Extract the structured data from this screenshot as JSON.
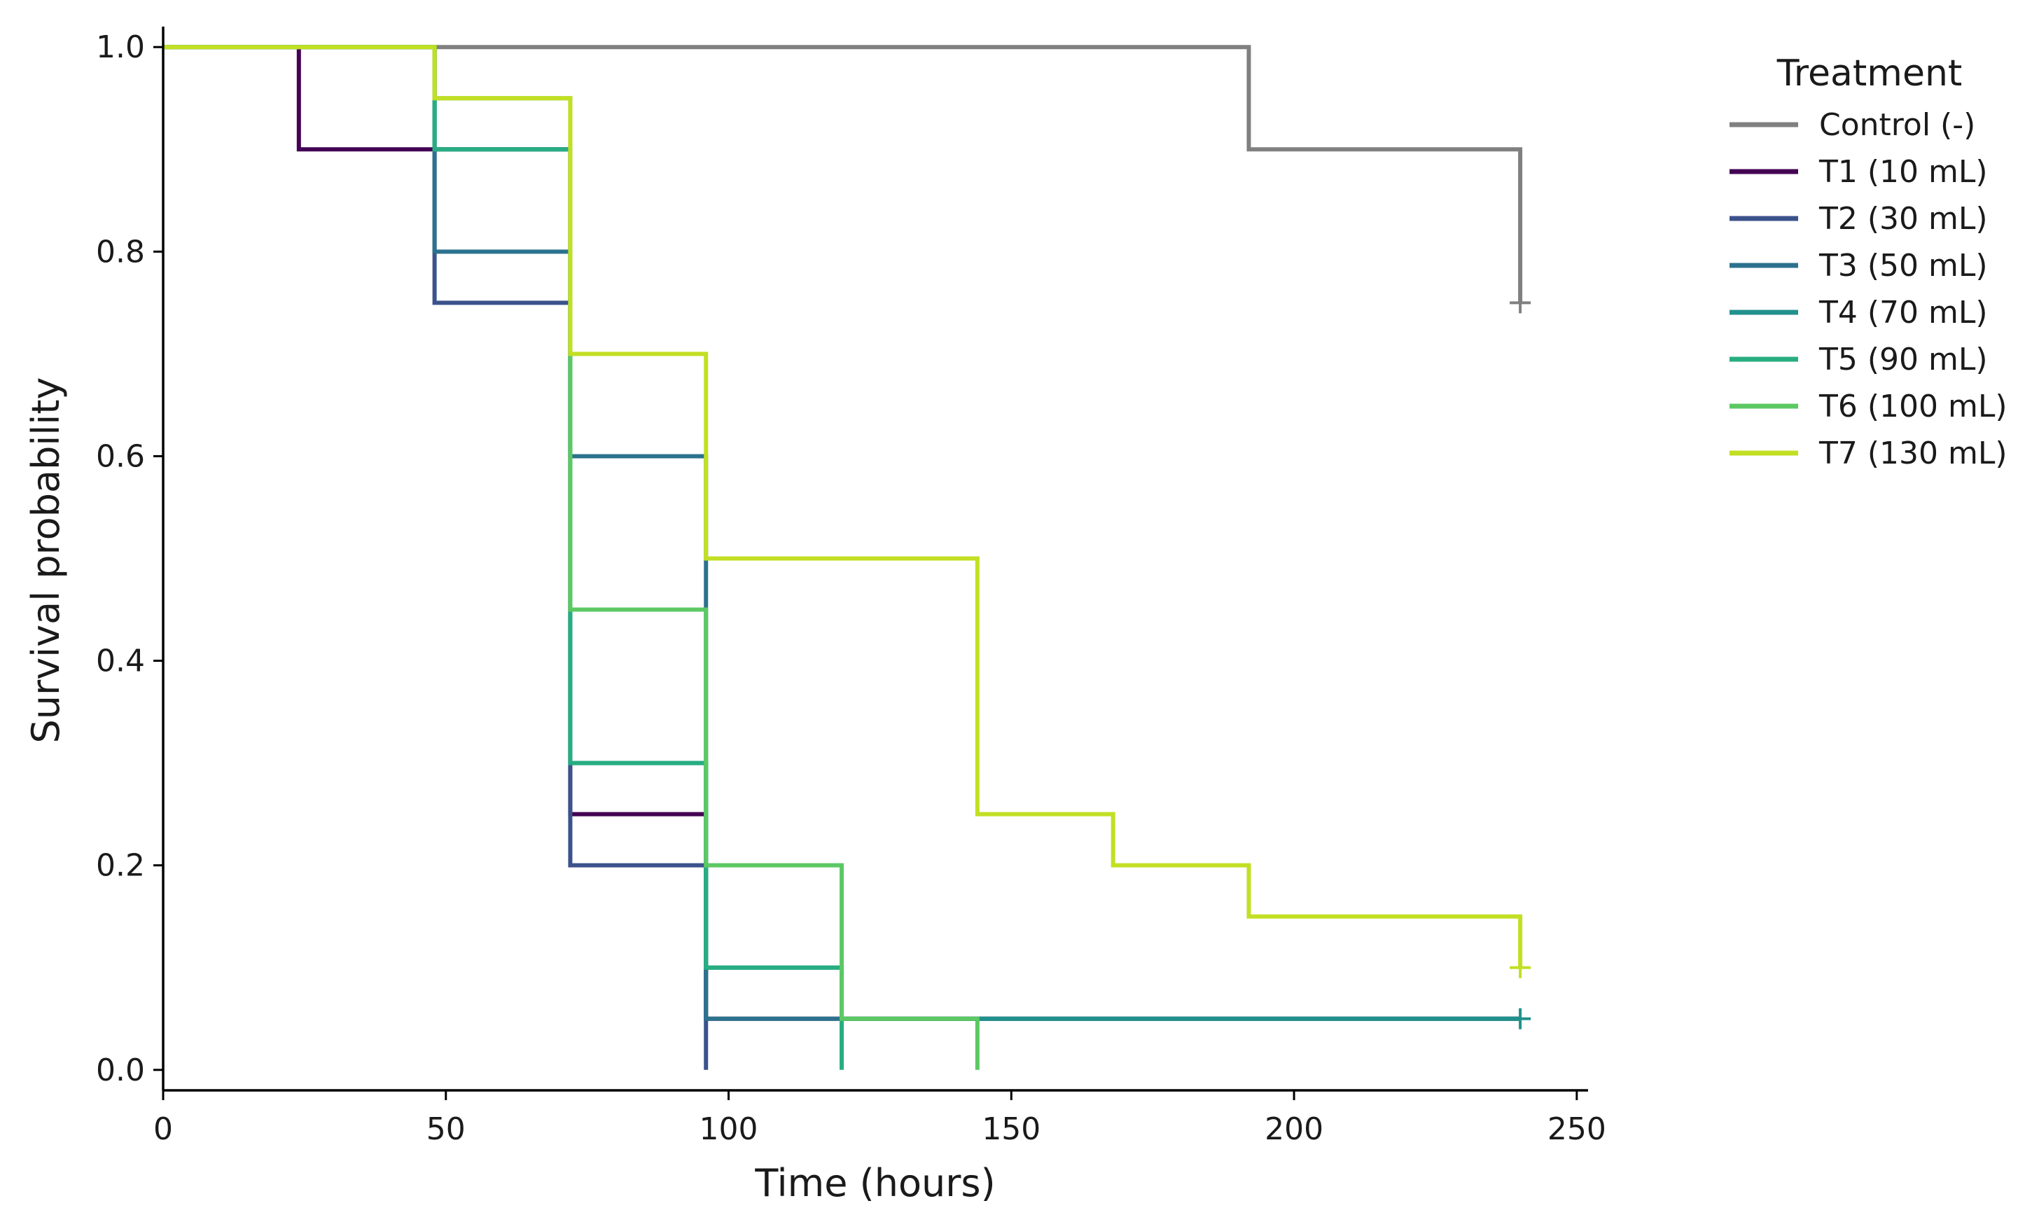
{
  "chart_data": {
    "type": "line",
    "step": "post",
    "xlabel": "Time (hours)",
    "ylabel": "Survival probability",
    "xlim": [
      0,
      252
    ],
    "ylim": [
      -0.02,
      1.02
    ],
    "xticks": [
      0,
      50,
      100,
      150,
      200,
      250
    ],
    "xtick_labels": [
      "0",
      "50",
      "100",
      "150",
      "200",
      "250"
    ],
    "yticks": [
      0.0,
      0.2,
      0.4,
      0.6,
      0.8,
      1.0
    ],
    "ytick_labels": [
      "0.0",
      "0.2",
      "0.4",
      "0.6",
      "0.8",
      "1.0"
    ],
    "grid": false,
    "legend": {
      "title": "Treatment",
      "position": "outside-right"
    },
    "series": [
      {
        "name": "Control (-)",
        "color": "#808080",
        "x": [
          0,
          192,
          240
        ],
        "y": [
          1.0,
          0.9,
          0.75
        ],
        "censored": [
          {
            "x": 240,
            "y": 0.75
          }
        ]
      },
      {
        "name": "T1 (10 mL)",
        "color": "#440154",
        "x": [
          0,
          24,
          48,
          72,
          96,
          240
        ],
        "y": [
          1.0,
          0.9,
          0.9,
          0.25,
          0.05,
          0.05
        ],
        "censored": []
      },
      {
        "name": "T2 (30 mL)",
        "color": "#3b528b",
        "x": [
          0,
          48,
          72,
          96
        ],
        "y": [
          1.0,
          0.75,
          0.2,
          0.0
        ],
        "censored": []
      },
      {
        "name": "T3 (50 mL)",
        "color": "#2c728e",
        "x": [
          0,
          48,
          72,
          96,
          240
        ],
        "y": [
          1.0,
          0.8,
          0.6,
          0.05,
          0.05
        ],
        "censored": []
      },
      {
        "name": "T4 (70 mL)",
        "color": "#21918c",
        "x": [
          0,
          48,
          72,
          96,
          120,
          240
        ],
        "y": [
          1.0,
          0.9,
          0.3,
          0.1,
          0.05,
          0.05
        ],
        "censored": [
          {
            "x": 240,
            "y": 0.05
          }
        ]
      },
      {
        "name": "T5 (90 mL)",
        "color": "#27ad81",
        "x": [
          0,
          48,
          72,
          96,
          120
        ],
        "y": [
          1.0,
          0.9,
          0.3,
          0.1,
          0.0
        ],
        "censored": []
      },
      {
        "name": "T6 (100 mL)",
        "color": "#5dc863",
        "x": [
          0,
          48,
          72,
          96,
          120,
          144
        ],
        "y": [
          1.0,
          0.95,
          0.45,
          0.2,
          0.05,
          0.0
        ],
        "censored": []
      },
      {
        "name": "T7 (130 mL)",
        "color": "#c2df23",
        "x": [
          0,
          48,
          72,
          96,
          144,
          168,
          192,
          240
        ],
        "y": [
          1.0,
          0.95,
          0.7,
          0.5,
          0.25,
          0.2,
          0.15,
          0.1
        ],
        "censored": [
          {
            "x": 240,
            "y": 0.1
          }
        ]
      }
    ]
  }
}
